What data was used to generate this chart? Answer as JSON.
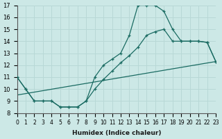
{
  "xlabel": "Humidex (Indice chaleur)",
  "bg_color": "#cce8e6",
  "grid_color": "#b8d8d6",
  "line_color": "#1a6b62",
  "line1_x": [
    0,
    1,
    2,
    3,
    4,
    5,
    6,
    7,
    8,
    9,
    10,
    11,
    12,
    13,
    14,
    15,
    16,
    17,
    18,
    19,
    20,
    21,
    22,
    23
  ],
  "line1_y": [
    11,
    10,
    9,
    9,
    9,
    8.5,
    8.5,
    8.5,
    9,
    11,
    12,
    12.5,
    13,
    14.5,
    17,
    17,
    17,
    16.5,
    15,
    14,
    14,
    14,
    13.9,
    12.3
  ],
  "line2_x": [
    0,
    1,
    2,
    3,
    4,
    5,
    6,
    7,
    8,
    9,
    10,
    11,
    12,
    13,
    14,
    15,
    16,
    17,
    18,
    19,
    20,
    21,
    22,
    23
  ],
  "line2_y": [
    11,
    10,
    9,
    9,
    9,
    8.5,
    8.5,
    8.5,
    9,
    10,
    10.8,
    11.5,
    12.2,
    12.8,
    13.5,
    14.5,
    14.8,
    15,
    14,
    14,
    14,
    14,
    13.9,
    12.3
  ],
  "line3_x": [
    0,
    23
  ],
  "line3_y": [
    9.5,
    12.3
  ],
  "xlim": [
    0,
    23
  ],
  "ylim": [
    8,
    17
  ],
  "xticks": [
    0,
    1,
    2,
    3,
    4,
    5,
    6,
    7,
    8,
    9,
    10,
    11,
    12,
    13,
    14,
    15,
    16,
    17,
    18,
    19,
    20,
    21,
    22,
    23
  ],
  "yticks": [
    8,
    9,
    10,
    11,
    12,
    13,
    14,
    15,
    16,
    17
  ]
}
